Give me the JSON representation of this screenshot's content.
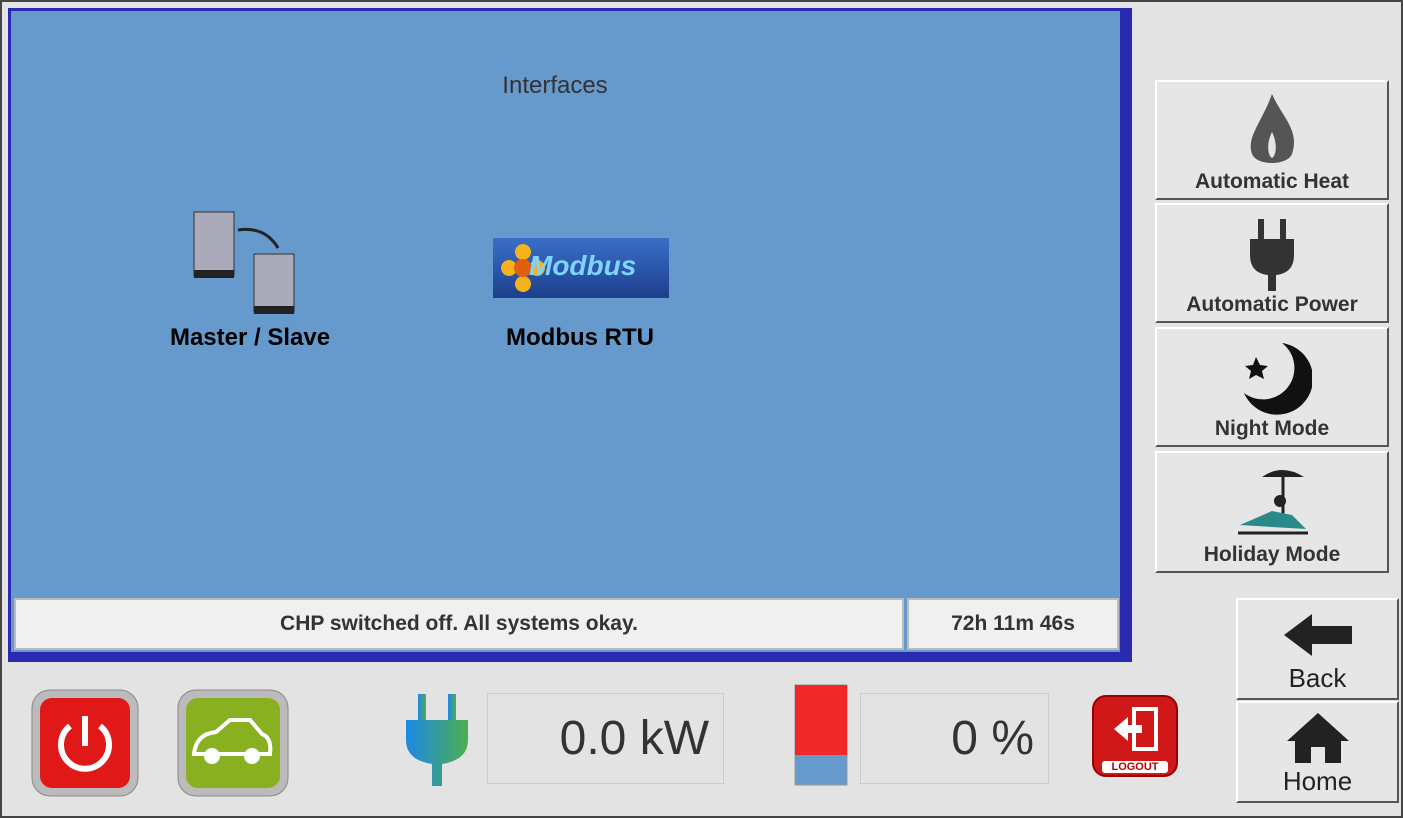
{
  "panel": {
    "title": "Interfaces",
    "items": [
      {
        "label": "Master / Slave"
      },
      {
        "label": "Modbus RTU",
        "logo_text": "Modbus"
      }
    ]
  },
  "status": {
    "message": "CHP switched off. All systems okay.",
    "runtime": "72h 11m 46s"
  },
  "modes": [
    {
      "label": "Automatic Heat"
    },
    {
      "label": "Automatic Power"
    },
    {
      "label": "Night Mode"
    },
    {
      "label": "Holiday Mode"
    }
  ],
  "navigation": {
    "back": "Back",
    "home": "Home"
  },
  "readouts": {
    "power": "0.0 kW",
    "level": "0 %"
  },
  "logout": "LOGOUT"
}
